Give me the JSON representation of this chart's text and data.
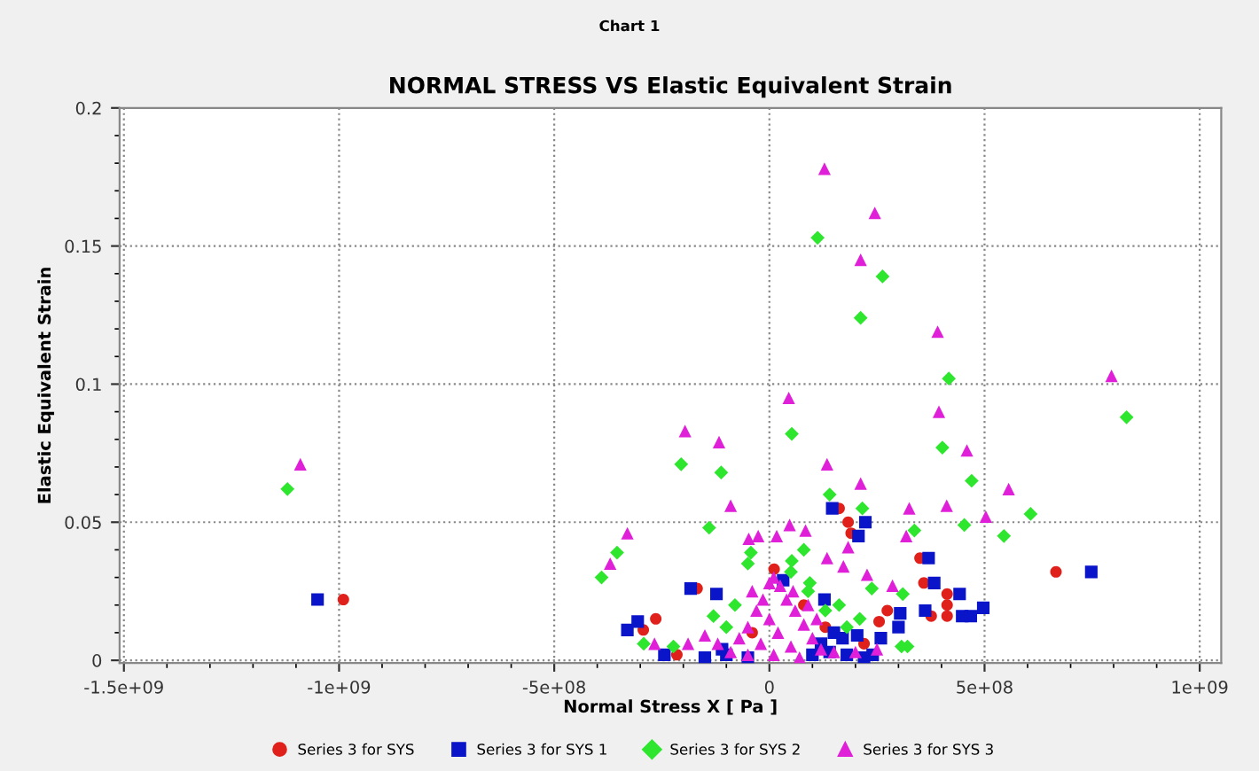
{
  "chart_data": {
    "type": "scatter",
    "subtitle": "Chart 1",
    "title": "NORMAL STRESS VS Elastic Equivalent Strain",
    "xlabel": "Normal Stress X [ Pa ]",
    "ylabel": "Elastic Equivalent Strain",
    "xlim": [
      -1510000000.0,
      1050000000.0
    ],
    "ylim": [
      -0.001,
      0.2
    ],
    "xticks": [
      {
        "value": -1500000000.0,
        "label": "-1.5e+09"
      },
      {
        "value": -1000000000.0,
        "label": "-1e+09"
      },
      {
        "value": -500000000.0,
        "label": "-5e+08"
      },
      0,
      {
        "value": 500000000.0,
        "label": "5e+08"
      },
      {
        "value": 1000000000.0,
        "label": "1e+09"
      }
    ],
    "yticks": [
      0,
      0.05,
      0.1,
      0.15,
      0.2
    ],
    "grid": true,
    "legend": "bottom",
    "series": [
      {
        "name": "Series 3 for SYS",
        "color": "#e0201b",
        "marker": "circle",
        "x": [
          -990000000.0,
          666000000.0,
          183000000.0,
          162000000.0,
          190000000.0,
          350000000.0,
          359000000.0,
          413000000.0,
          413000000.0,
          413000000.0,
          376000000.0,
          274000000.0,
          255000000.0,
          -264000000.0,
          -293000000.0,
          -215000000.0,
          -168000000.0,
          11000000.0,
          80000000.0,
          130000000.0,
          -40000000.0,
          220000000.0
        ],
        "values": [
          0.022,
          0.032,
          0.05,
          0.055,
          0.046,
          0.037,
          0.028,
          0.024,
          0.02,
          0.016,
          0.016,
          0.018,
          0.014,
          0.015,
          0.011,
          0.002,
          0.026,
          0.033,
          0.02,
          0.012,
          0.01,
          0.006
        ]
      },
      {
        "name": "Series 3 for SYS 1",
        "color": "#0a14c8",
        "marker": "square",
        "x": [
          -1050000000.0,
          -330000000.0,
          146000000.0,
          223000000.0,
          207000000.0,
          370000000.0,
          383000000.0,
          748000000.0,
          -183000000.0,
          -123000000.0,
          442000000.0,
          497000000.0,
          448000000.0,
          468000000.0,
          362000000.0,
          304000000.0,
          300000000.0,
          -306000000.0,
          128000000.0,
          -244000000.0,
          170000000.0,
          204000000.0,
          259000000.0,
          32000000.0,
          -150000000.0,
          -100000000.0,
          -50000000.0,
          100000000.0,
          140000000.0,
          180000000.0,
          220000000.0,
          240000000.0,
          150000000.0,
          120000000.0,
          -110000000.0
        ],
        "values": [
          0.022,
          0.011,
          0.055,
          0.05,
          0.045,
          0.037,
          0.028,
          0.032,
          0.026,
          0.024,
          0.024,
          0.019,
          0.016,
          0.016,
          0.018,
          0.017,
          0.012,
          0.014,
          0.022,
          0.002,
          0.008,
          0.009,
          0.008,
          0.029,
          0.001,
          0.002,
          0.001,
          0.002,
          0.003,
          0.002,
          0.001,
          0.002,
          0.01,
          0.006,
          0.004
        ]
      },
      {
        "name": "Series 3 for SYS 2",
        "color": "#2ee62e",
        "marker": "diamond",
        "x": [
          -1120000000.0,
          -390000000.0,
          112000000.0,
          263000000.0,
          212000000.0,
          417000000.0,
          830000000.0,
          52000000.0,
          -205000000.0,
          -112000000.0,
          402000000.0,
          470000000.0,
          607000000.0,
          545000000.0,
          -140000000.0,
          140000000.0,
          216000000.0,
          337000000.0,
          453000000.0,
          -354000000.0,
          -43000000.0,
          52000000.0,
          94000000.0,
          310000000.0,
          -292000000.0,
          -223000000.0,
          307000000.0,
          321000000.0,
          162000000.0,
          238000000.0,
          -80000000.0,
          50000000.0,
          90000000.0,
          130000000.0,
          180000000.0,
          210000000.0,
          -100000000.0,
          -130000000.0,
          80000000.0,
          -50000000.0
        ],
        "values": [
          0.062,
          0.03,
          0.153,
          0.139,
          0.124,
          0.102,
          0.088,
          0.082,
          0.071,
          0.068,
          0.077,
          0.065,
          0.053,
          0.045,
          0.048,
          0.06,
          0.055,
          0.047,
          0.049,
          0.039,
          0.039,
          0.036,
          0.028,
          0.024,
          0.006,
          0.005,
          0.005,
          0.005,
          0.02,
          0.026,
          0.02,
          0.032,
          0.025,
          0.018,
          0.012,
          0.015,
          0.012,
          0.016,
          0.04,
          0.035
        ]
      },
      {
        "name": "Series 3 for SYS 3",
        "color": "#e020d8",
        "marker": "triangle",
        "x": [
          -1090000000.0,
          -370000000.0,
          -330000000.0,
          128000000.0,
          245000000.0,
          212000000.0,
          391000000.0,
          795000000.0,
          394000000.0,
          45000000.0,
          -196000000.0,
          -117000000.0,
          459000000.0,
          134000000.0,
          556000000.0,
          -90000000.0,
          212000000.0,
          325000000.0,
          412000000.0,
          503000000.0,
          47000000.0,
          84000000.0,
          17000000.0,
          -48000000.0,
          -26000000.0,
          318000000.0,
          183000000.0,
          134000000.0,
          172000000.0,
          227000000.0,
          286000000.0,
          -267000000.0,
          -189000000.0,
          -90000000.0,
          -70000000.0,
          -50000000.0,
          -30000000.0,
          -15000000.0,
          0,
          10000000.0,
          25000000.0,
          40000000.0,
          60000000.0,
          80000000.0,
          100000000.0,
          120000000.0,
          0,
          20000000.0,
          -20000000.0,
          50000000.0,
          10000000.0,
          -50000000.0,
          70000000.0,
          -40000000.0,
          55000000.0,
          150000000.0,
          200000000.0,
          250000000.0,
          -120000000.0,
          -150000000.0,
          90000000.0,
          110000000.0
        ],
        "values": [
          0.071,
          0.035,
          0.046,
          0.178,
          0.162,
          0.145,
          0.119,
          0.103,
          0.09,
          0.095,
          0.083,
          0.079,
          0.076,
          0.071,
          0.062,
          0.056,
          0.064,
          0.055,
          0.056,
          0.052,
          0.049,
          0.047,
          0.045,
          0.044,
          0.045,
          0.045,
          0.041,
          0.037,
          0.034,
          0.031,
          0.027,
          0.006,
          0.006,
          0.003,
          0.008,
          0.012,
          0.018,
          0.022,
          0.028,
          0.03,
          0.027,
          0.022,
          0.018,
          0.013,
          0.008,
          0.004,
          0.015,
          0.01,
          0.006,
          0.005,
          0.002,
          0.002,
          0.001,
          0.025,
          0.025,
          0.003,
          0.003,
          0.004,
          0.006,
          0.009,
          0.02,
          0.015
        ]
      }
    ]
  }
}
